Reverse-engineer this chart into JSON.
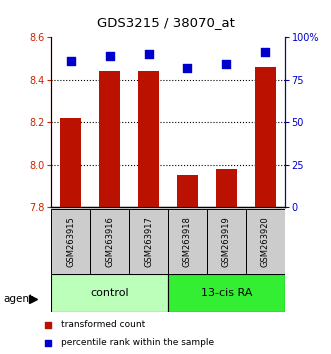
{
  "title": "GDS3215 / 38070_at",
  "samples": [
    "GSM263915",
    "GSM263916",
    "GSM263917",
    "GSM263918",
    "GSM263919",
    "GSM263920"
  ],
  "transformed_counts": [
    8.22,
    8.44,
    8.44,
    7.95,
    7.98,
    8.46
  ],
  "percentile_ranks": [
    86,
    89,
    90,
    82,
    84,
    91
  ],
  "ylim_left": [
    7.8,
    8.6
  ],
  "ylim_right": [
    0,
    100
  ],
  "yticks_left": [
    7.8,
    8.0,
    8.2,
    8.4,
    8.6
  ],
  "yticks_right": [
    0,
    25,
    50,
    75,
    100
  ],
  "ytick_labels_right": [
    "0",
    "25",
    "50",
    "75",
    "100%"
  ],
  "groups": [
    {
      "label": "control",
      "indices": [
        0,
        1,
        2
      ],
      "color": "#bbffbb"
    },
    {
      "label": "13-cis RA",
      "indices": [
        3,
        4,
        5
      ],
      "color": "#33ee33"
    }
  ],
  "group_label": "agent",
  "bar_color": "#bb1100",
  "dot_color": "#0000cc",
  "dot_size": 30,
  "bar_width": 0.55,
  "left_tick_color": "#cc2200",
  "right_tick_color": "#0000cc",
  "legend_items": [
    {
      "color": "#bb1100",
      "label": "transformed count"
    },
    {
      "color": "#0000cc",
      "label": "percentile rank within the sample"
    }
  ],
  "sample_box_color": "#cccccc",
  "gridline_ticks": [
    8.0,
    8.2,
    8.4
  ]
}
